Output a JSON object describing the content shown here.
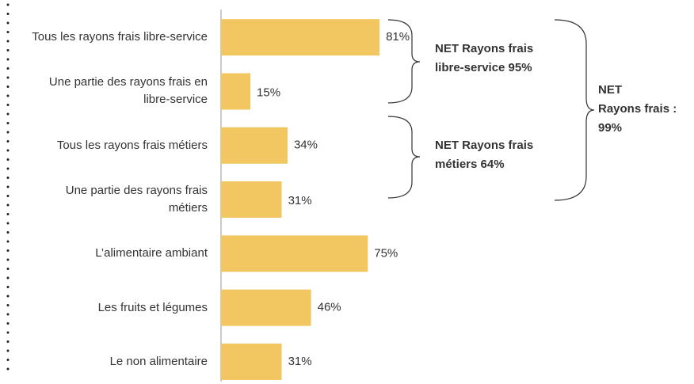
{
  "chart_data": {
    "type": "barh",
    "categories": [
      "Tous les rayons frais libre-service",
      "Une partie des rayons frais en libre-service",
      "Tous les rayons frais métiers",
      "Une partie des rayons frais métiers",
      "L’alimentaire ambiant",
      "Les fruits et légumes",
      "Le non alimentaire"
    ],
    "values": [
      81,
      15,
      34,
      31,
      75,
      46,
      31
    ],
    "value_labels": [
      "81%",
      "15%",
      "34%",
      "31%",
      "75%",
      "46%",
      "31%"
    ],
    "color": "#f2c761",
    "xlim": [
      0,
      100
    ],
    "annotations": [
      {
        "lines": [
          "NET Rayons frais",
          "libre-service 95%"
        ]
      },
      {
        "lines": [
          "NET Rayons frais",
          "métiers 64%"
        ]
      },
      {
        "lines": [
          "NET",
          "Rayons frais :",
          "99%"
        ]
      }
    ]
  }
}
